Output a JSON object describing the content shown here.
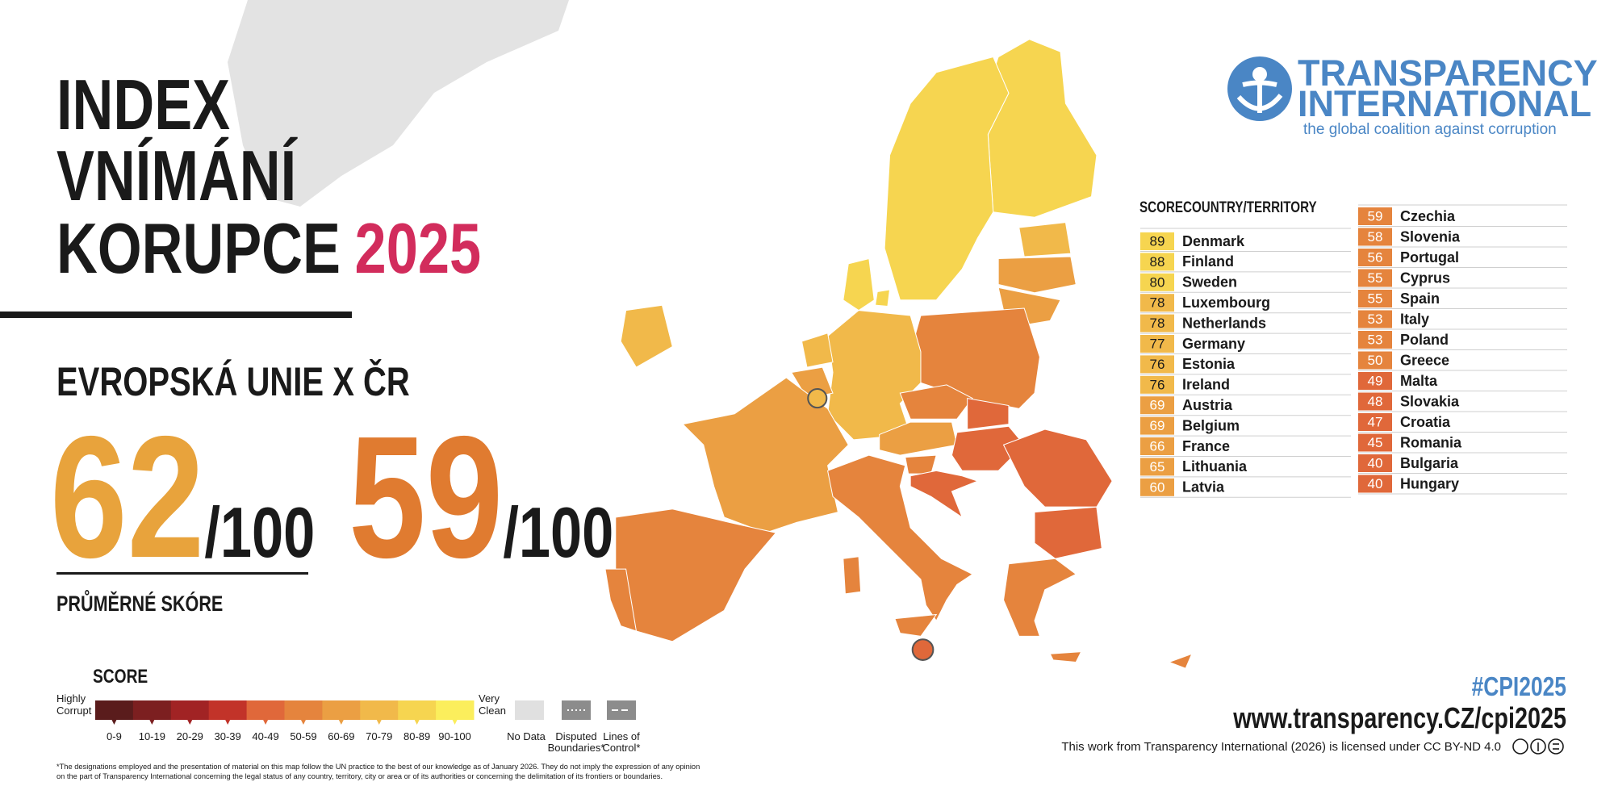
{
  "header": {
    "title_lines": [
      "INDEX",
      "VNÍMÁNÍ",
      "KORUPCE"
    ],
    "title_year": "2025"
  },
  "summary": {
    "heading": "EVROPSKÁ UNIE X ČR",
    "eu_score": 62,
    "cz_score": 59,
    "max_label": "/100",
    "caption": "PRŮMĚRNÉ SKÓRE"
  },
  "logo": {
    "line1": "TRANSPARENCY",
    "line2": "INTERNATIONAL",
    "tagline": "the global coalition against corruption"
  },
  "table": {
    "header": [
      "SCORE",
      "COUNTRY/TERRITORY"
    ],
    "rows": [
      {
        "score": 89,
        "country": "Denmark"
      },
      {
        "score": 88,
        "country": "Finland"
      },
      {
        "score": 80,
        "country": "Sweden"
      },
      {
        "score": 78,
        "country": "Luxembourg"
      },
      {
        "score": 78,
        "country": "Netherlands"
      },
      {
        "score": 77,
        "country": "Germany"
      },
      {
        "score": 76,
        "country": "Estonia"
      },
      {
        "score": 76,
        "country": "Ireland"
      },
      {
        "score": 69,
        "country": "Austria"
      },
      {
        "score": 69,
        "country": "Belgium"
      },
      {
        "score": 66,
        "country": "France"
      },
      {
        "score": 65,
        "country": "Lithuania"
      },
      {
        "score": 60,
        "country": "Latvia"
      },
      {
        "score": 59,
        "country": "Czechia"
      },
      {
        "score": 58,
        "country": "Slovenia"
      },
      {
        "score": 56,
        "country": "Portugal"
      },
      {
        "score": 55,
        "country": "Cyprus"
      },
      {
        "score": 55,
        "country": "Spain"
      },
      {
        "score": 53,
        "country": "Italy"
      },
      {
        "score": 53,
        "country": "Poland"
      },
      {
        "score": 50,
        "country": "Greece"
      },
      {
        "score": 49,
        "country": "Malta"
      },
      {
        "score": 48,
        "country": "Slovakia"
      },
      {
        "score": 47,
        "country": "Croatia"
      },
      {
        "score": 45,
        "country": "Romania"
      },
      {
        "score": 40,
        "country": "Bulgaria"
      },
      {
        "score": 40,
        "country": "Hungary"
      }
    ]
  },
  "legend": {
    "title": "SCORE",
    "low_label": [
      "Highly",
      "Corrupt"
    ],
    "high_label": [
      "Very",
      "Clean"
    ],
    "ranges": [
      "0-9",
      "10-19",
      "20-29",
      "30-39",
      "40-49",
      "50-59",
      "60-69",
      "70-79",
      "80-89",
      "90-100"
    ],
    "colors": [
      "#5a1c1c",
      "#7c1f20",
      "#a12324",
      "#c23329",
      "#e0683a",
      "#e5843d",
      "#eb9f43",
      "#f1b94a",
      "#f6d550",
      "#fbee5c"
    ],
    "no_data": "No Data",
    "disputed": [
      "Disputed",
      "Boundaries*"
    ],
    "lines_of_control": [
      "Lines of",
      "Control*"
    ]
  },
  "footnote": [
    "*The designations employed and the presentation of material on this map follow the UN practice to the best of our knowledge as of January 2026. They do not imply the expression of any opinion",
    "on the part of Transparency International concerning the legal status of any country, territory, city or area or of its authorities or concerning the delimitation of its frontiers or boundaries."
  ],
  "footer": {
    "hashtag": "#CPI2025",
    "url": "www.transparency.CZ/cpi2025",
    "license": "This work from Transparency International (2026) is licensed under CC BY-ND 4.0"
  }
}
